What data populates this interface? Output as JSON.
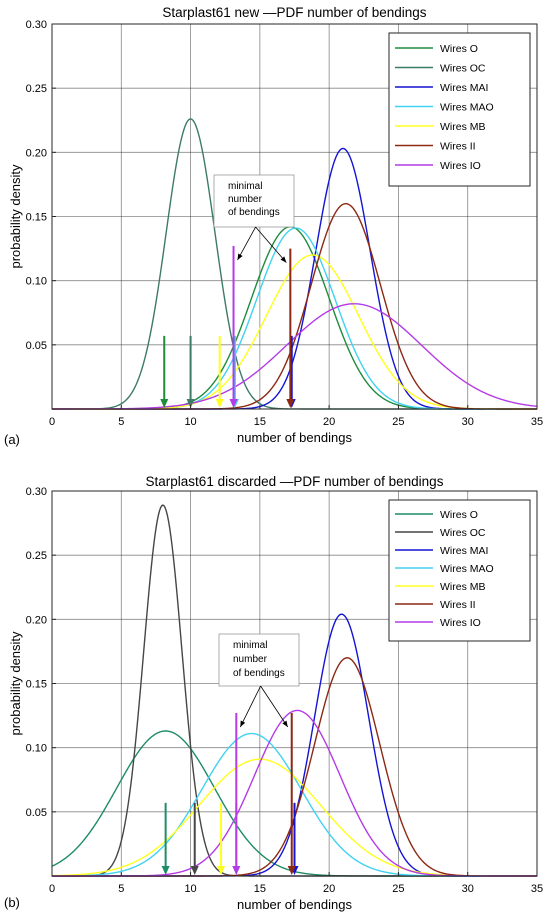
{
  "chart_data": [
    {
      "type": "line",
      "panel_label": "(a)",
      "title": "Starplast61 new —PDF number of bendings",
      "xlabel": "number of bendings",
      "ylabel": "probability density",
      "xlim": [
        0,
        35
      ],
      "ylim": [
        0,
        0.3
      ],
      "xticks": [
        0,
        5,
        10,
        15,
        20,
        25,
        30,
        35
      ],
      "yticks": [
        0.05,
        0.1,
        0.15,
        0.2,
        0.25,
        0.3
      ],
      "ytick_labels": [
        "0.05",
        "0.10",
        "0.15",
        "0.20",
        "0.25",
        "0.30"
      ],
      "grid": true,
      "legend_position": "top-right",
      "annotation": [
        "minimal",
        "number",
        "of bendings"
      ],
      "series": [
        {
          "name": "Wires O",
          "color": "#1e8c3c",
          "mean": 17.2,
          "peak": 0.142,
          "marker_x": 8.1,
          "marker_top": 0.057
        },
        {
          "name": "Wires OC",
          "color": "#3e7a68",
          "mean": 10.0,
          "peak": 0.226,
          "marker_x": 10.0,
          "marker_top": 0.057
        },
        {
          "name": "Wires MAI",
          "color": "#1414d2",
          "mean": 21.0,
          "peak": 0.203,
          "marker_x": 17.3,
          "marker_top": 0.057
        },
        {
          "name": "Wires MAO",
          "color": "#40d2f0",
          "mean": 17.6,
          "peak": 0.141,
          "marker_x": 13.2,
          "marker_top": 0.057
        },
        {
          "name": "Wires MB",
          "color": "#ffff1e",
          "mean": 18.8,
          "peak": 0.12,
          "marker_x": 12.1,
          "marker_top": 0.057
        },
        {
          "name": "Wires II",
          "color": "#8c2814",
          "mean": 21.2,
          "peak": 0.16,
          "marker_x": 17.2,
          "marker_top": 0.125
        },
        {
          "name": "Wires IO",
          "color": "#b43ce6",
          "mean": 21.8,
          "peak": 0.082,
          "marker_x": 13.1,
          "marker_top": 0.127
        }
      ]
    },
    {
      "type": "line",
      "panel_label": "(b)",
      "title": "Starplast61 discarded —PDF number of bendings",
      "xlabel": "number of bendings",
      "ylabel": "probability density",
      "xlim": [
        0,
        35
      ],
      "ylim": [
        0,
        0.3
      ],
      "xticks": [
        0,
        5,
        10,
        15,
        20,
        25,
        30,
        35
      ],
      "yticks": [
        0.05,
        0.1,
        0.15,
        0.2,
        0.25,
        0.3
      ],
      "ytick_labels": [
        "0.05",
        "0.10",
        "0.15",
        "0.20",
        "0.25",
        "0.30"
      ],
      "grid": true,
      "legend_position": "top-right",
      "annotation": [
        "minimal",
        "number",
        "of bendings"
      ],
      "series": [
        {
          "name": "Wires O",
          "color": "#1e8c64",
          "mean": 8.2,
          "peak": 0.113,
          "marker_x": 8.2,
          "marker_top": 0.057
        },
        {
          "name": "Wires OC",
          "color": "#464646",
          "mean": 8.0,
          "peak": 0.289,
          "marker_x": 10.3,
          "marker_top": 0.057
        },
        {
          "name": "Wires MAI",
          "color": "#1414d2",
          "mean": 20.9,
          "peak": 0.204,
          "marker_x": 17.5,
          "marker_top": 0.057
        },
        {
          "name": "Wires MAO",
          "color": "#40d2f0",
          "mean": 14.4,
          "peak": 0.111,
          "marker_x": 13.3,
          "marker_top": 0.057
        },
        {
          "name": "Wires MB",
          "color": "#ffff1e",
          "mean": 15.0,
          "peak": 0.091,
          "marker_x": 12.2,
          "marker_top": 0.057
        },
        {
          "name": "Wires II",
          "color": "#8c2814",
          "mean": 21.3,
          "peak": 0.17,
          "marker_x": 17.3,
          "marker_top": 0.127
        },
        {
          "name": "Wires IO",
          "color": "#b43ce6",
          "mean": 17.7,
          "peak": 0.129,
          "marker_x": 13.3,
          "marker_top": 0.127
        }
      ]
    }
  ]
}
